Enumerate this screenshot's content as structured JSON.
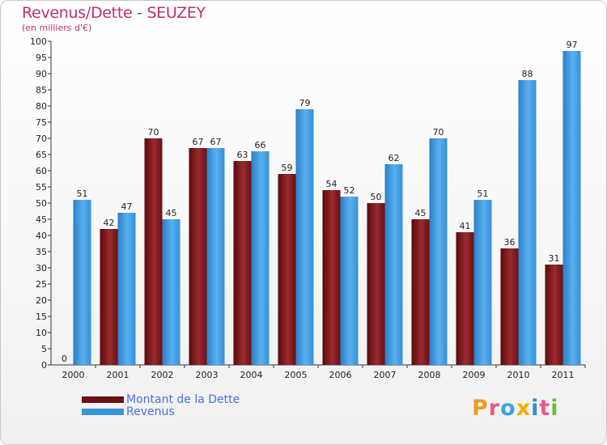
{
  "title": "Revenus/Dette - SEUZEY",
  "subtitle": "(en milliers d'€)",
  "logo": {
    "letters": [
      "P",
      "r",
      "o",
      "x",
      "i",
      "t",
      "i"
    ],
    "colors": [
      "#e8a020",
      "#e85a8a",
      "#3fa0e0",
      "#f0b000",
      "#2a8fd8",
      "#e85a8a",
      "#6abf3a"
    ]
  },
  "colors": {
    "dette": "#7a1418",
    "revenus": "#3a95d8",
    "accent": "#c0306a"
  },
  "chart_data": {
    "type": "bar",
    "categories": [
      "2000",
      "2001",
      "2002",
      "2003",
      "2004",
      "2005",
      "2006",
      "2007",
      "2008",
      "2009",
      "2010",
      "2011"
    ],
    "series": [
      {
        "name": "Montant de la Dette",
        "values": [
          0,
          42,
          70,
          67,
          63,
          59,
          54,
          50,
          45,
          41,
          36,
          31
        ]
      },
      {
        "name": "Revenus",
        "values": [
          51,
          47,
          45,
          67,
          66,
          79,
          52,
          62,
          70,
          51,
          88,
          97
        ]
      }
    ],
    "ylim": [
      0,
      100
    ],
    "yticks": [
      0,
      5,
      10,
      15,
      20,
      25,
      30,
      35,
      40,
      45,
      50,
      55,
      60,
      65,
      70,
      75,
      80,
      85,
      90,
      95,
      100
    ],
    "grid": false,
    "legend": "bottom-left"
  }
}
